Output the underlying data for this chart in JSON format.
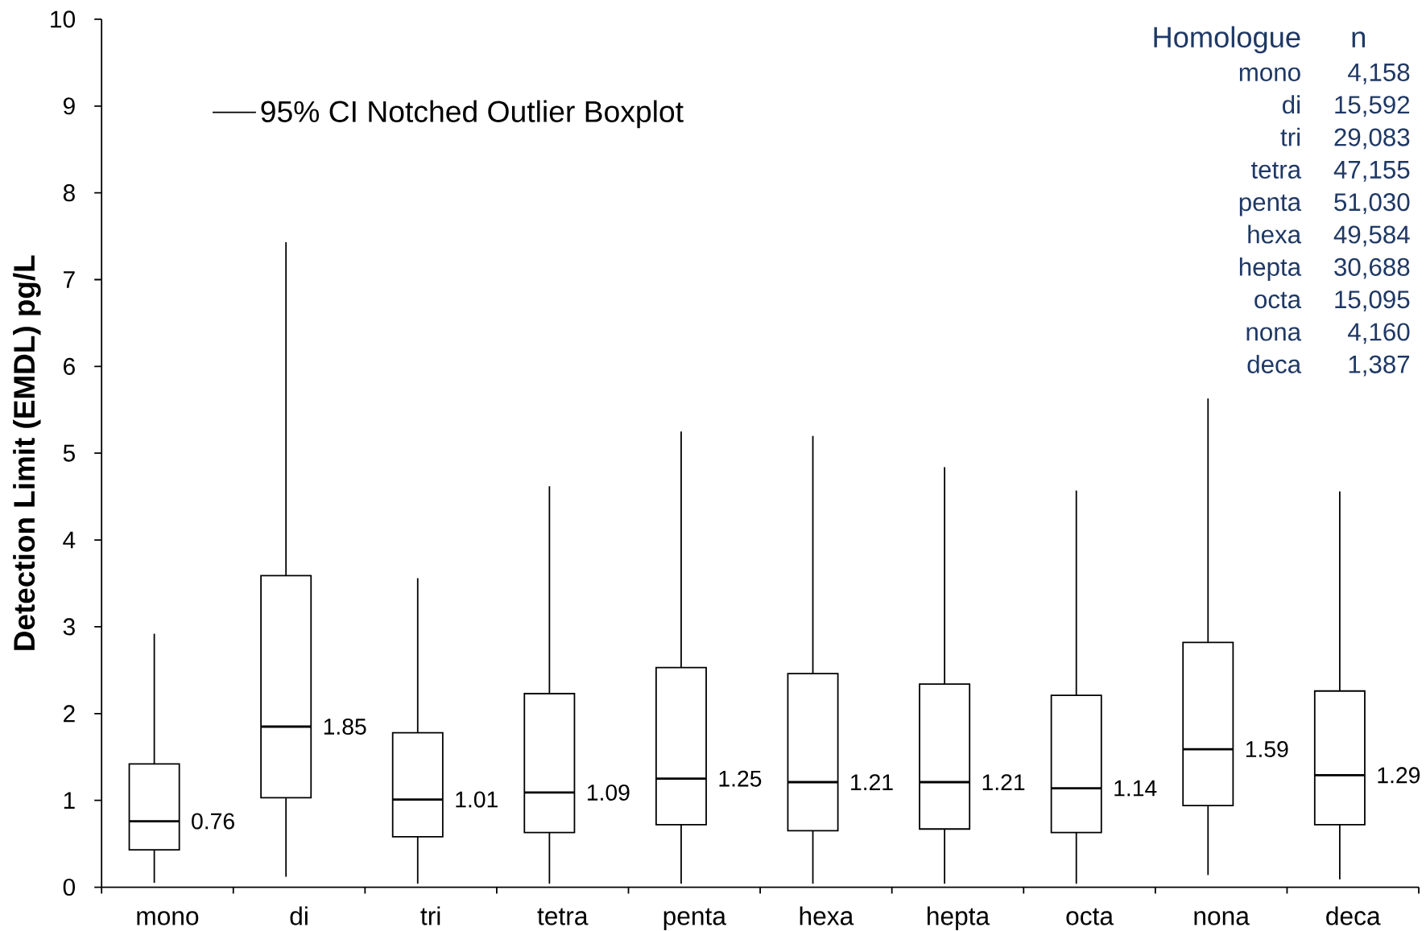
{
  "chart_data": {
    "type": "box",
    "ylabel": "Detection Limit (EMDL) pg/L",
    "categories": [
      "mono",
      "di",
      "tri",
      "tetra",
      "penta",
      "hexa",
      "hepta",
      "octa",
      "nona",
      "deca"
    ],
    "series": [
      {
        "name": "95% CI Notched Outlier Boxplot",
        "color": "#000000",
        "boxes": [
          {
            "low": 0.05,
            "q1": 0.43,
            "median": 0.76,
            "q3": 1.42,
            "high": 2.92
          },
          {
            "low": 0.12,
            "q1": 1.03,
            "median": 1.85,
            "q3": 3.59,
            "high": 7.43
          },
          {
            "low": 0.04,
            "q1": 0.58,
            "median": 1.01,
            "q3": 1.78,
            "high": 3.56
          },
          {
            "low": 0.04,
            "q1": 0.63,
            "median": 1.09,
            "q3": 2.23,
            "high": 4.62
          },
          {
            "low": 0.04,
            "q1": 0.72,
            "median": 1.25,
            "q3": 2.53,
            "high": 5.25
          },
          {
            "low": 0.04,
            "q1": 0.65,
            "median": 1.21,
            "q3": 2.46,
            "high": 5.2
          },
          {
            "low": 0.04,
            "q1": 0.67,
            "median": 1.21,
            "q3": 2.34,
            "high": 4.84
          },
          {
            "low": 0.04,
            "q1": 0.63,
            "median": 1.14,
            "q3": 2.21,
            "high": 4.57
          },
          {
            "low": 0.14,
            "q1": 0.94,
            "median": 1.59,
            "q3": 2.82,
            "high": 5.63
          },
          {
            "low": 0.09,
            "q1": 0.72,
            "median": 1.29,
            "q3": 2.26,
            "high": 4.56
          }
        ]
      }
    ],
    "ylim": [
      0,
      10
    ],
    "yticks": [
      0,
      1,
      2,
      3,
      4,
      5,
      6,
      7,
      8,
      9,
      10
    ],
    "legend": "top left",
    "annotations": [
      "Homologue",
      "n",
      "mono",
      "4,158",
      "di",
      "15,592",
      "tri",
      "29,083",
      "tetra",
      "47,155",
      "penta",
      "51,030",
      "hexa",
      "49,584",
      "hepta",
      "30,688",
      "octa",
      "15,095",
      "nona",
      "4,160",
      "deca",
      "1,387",
      {
        "text": "0.76",
        "x": "mono",
        "y": 0.76
      },
      {
        "text": "1.85",
        "x": "di",
        "y": 1.85
      },
      {
        "text": "1.01",
        "x": "tri",
        "y": 1.01
      },
      {
        "text": "1.09",
        "x": "tetra",
        "y": 1.09
      },
      {
        "text": "1.25",
        "x": "penta",
        "y": 1.25
      },
      {
        "text": "1.21",
        "x": "hexa",
        "y": 1.21
      },
      {
        "text": "1.21",
        "x": "hepta",
        "y": 1.21
      },
      {
        "text": "1.14",
        "x": "octa",
        "y": 1.14
      },
      {
        "text": "1.59",
        "x": "nona",
        "y": 1.59
      },
      {
        "text": "1.29",
        "x": "deca",
        "y": 1.29
      }
    ]
  }
}
